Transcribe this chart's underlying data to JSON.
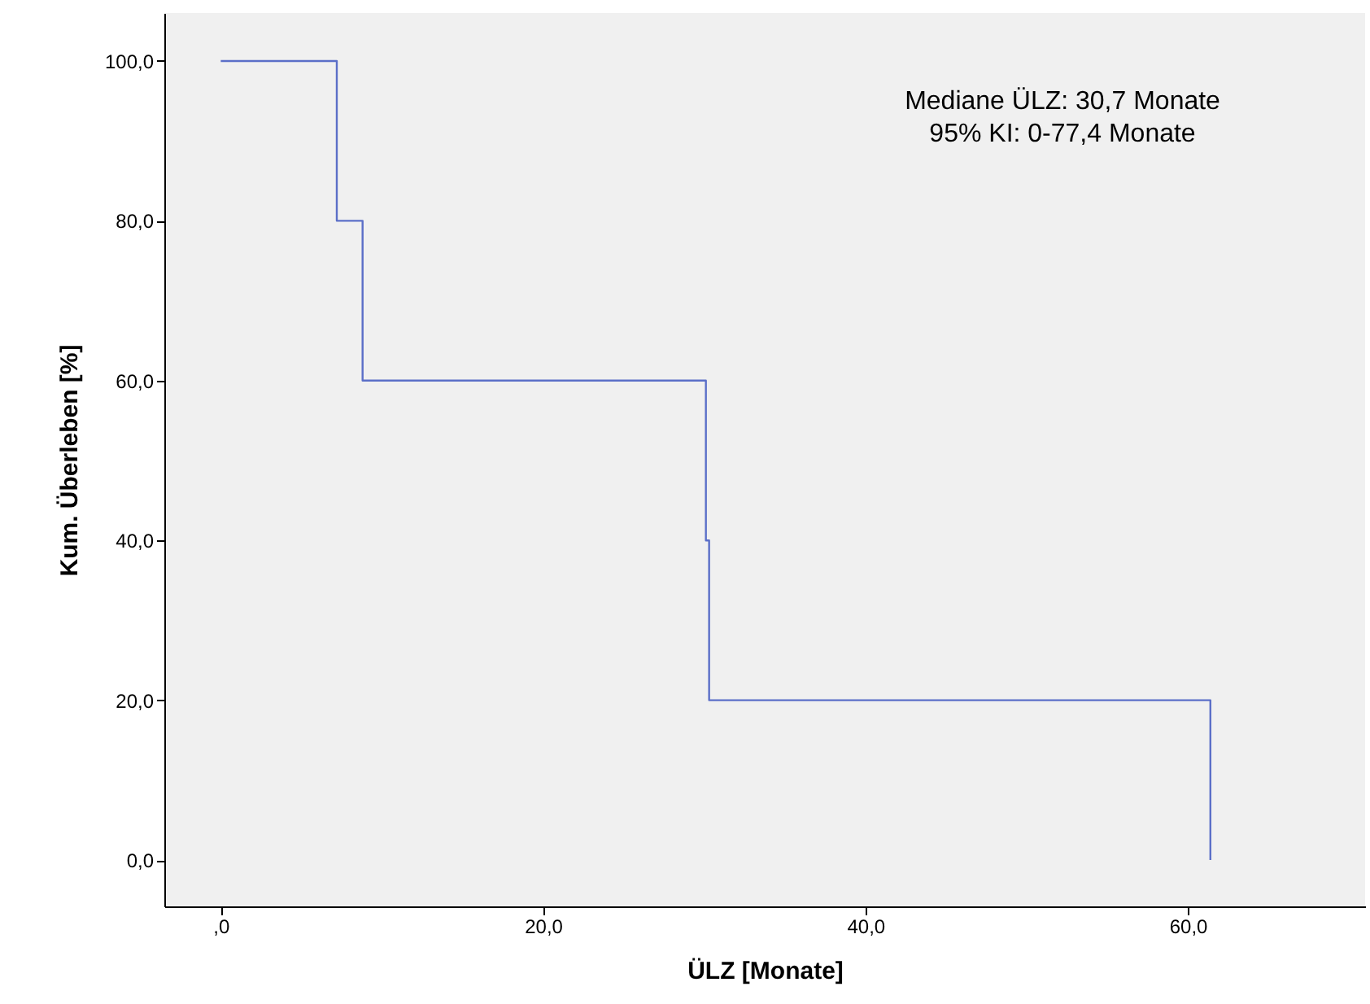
{
  "chart_data": {
    "type": "step",
    "xlabel": "ÜLZ [Monate]",
    "ylabel": "Kum. Überleben [%]",
    "annotations": [
      "Mediane ÜLZ: 30,7 Monate",
      "95% KI: 0-77,4 Monate"
    ],
    "x": [
      0,
      7.2,
      8.8,
      30.1,
      30.3,
      61.4
    ],
    "series": [
      {
        "color": "#5b6fc8",
        "values": [
          100,
          80,
          60,
          40,
          20,
          0
        ]
      }
    ],
    "xlim": [
      -3.5,
      71
    ],
    "ylim": [
      -5.8,
      106
    ],
    "xticks": [
      {
        "value": 0,
        "label": ",0"
      },
      {
        "value": 20,
        "label": "20,0"
      },
      {
        "value": 40,
        "label": "40,0"
      },
      {
        "value": 60,
        "label": "60,0"
      }
    ],
    "yticks": [
      {
        "value": 0,
        "label": "0,0"
      },
      {
        "value": 20,
        "label": "20,0"
      },
      {
        "value": 40,
        "label": "40,0"
      },
      {
        "value": 60,
        "label": "60,0"
      },
      {
        "value": 80,
        "label": "80,0"
      },
      {
        "value": 100,
        "label": "100,0"
      }
    ],
    "grid": false,
    "marker": "none",
    "line_style": "solid"
  }
}
